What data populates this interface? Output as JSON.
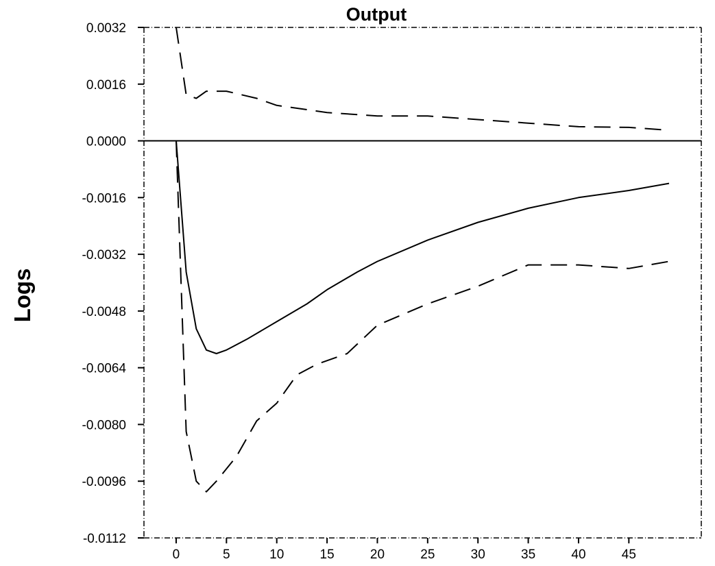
{
  "chart_data": {
    "type": "line",
    "title": "Output",
    "ylabel": "Logs",
    "xlabel": "",
    "xlim": [
      -3.2,
      52.2
    ],
    "ylim": [
      -0.0112,
      0.0032
    ],
    "x_ticks": [
      0,
      5,
      10,
      15,
      20,
      25,
      30,
      35,
      40,
      45
    ],
    "x_tick_labels": [
      "0",
      "5",
      "10",
      "15",
      "20",
      "25",
      "30",
      "35",
      "40",
      "45"
    ],
    "y_ticks": [
      0.0032,
      0.0016,
      0.0,
      -0.0016,
      -0.0032,
      -0.0048,
      -0.0064,
      -0.008,
      -0.0096,
      -0.0112
    ],
    "y_tick_labels": [
      "0.0032",
      "0.0016",
      "0.0000",
      "-0.0016",
      "-0.0032",
      "-0.0048",
      "-0.0064",
      "-0.0080",
      "-0.0096",
      "-0.0112"
    ],
    "zero_line": 0.0,
    "grid": false,
    "series": [
      {
        "role": "response",
        "style": "solid",
        "x": [
          0,
          1,
          2,
          3,
          4,
          5,
          7,
          10,
          13,
          15,
          18,
          20,
          25,
          30,
          35,
          40,
          45,
          49
        ],
        "y": [
          0.0,
          -0.0037,
          -0.0053,
          -0.0059,
          -0.006,
          -0.0059,
          -0.0056,
          -0.0051,
          -0.0046,
          -0.0042,
          -0.0037,
          -0.0034,
          -0.0028,
          -0.0023,
          -0.0019,
          -0.0016,
          -0.0014,
          -0.0012
        ]
      },
      {
        "role": "upper band",
        "style": "dashed",
        "x": [
          0,
          1,
          2,
          3,
          5,
          8,
          10,
          15,
          20,
          25,
          30,
          35,
          40,
          45,
          49
        ],
        "y": [
          0.0032,
          0.0013,
          0.0012,
          0.0014,
          0.0014,
          0.0012,
          0.001,
          0.0008,
          0.0007,
          0.0007,
          0.0006,
          0.0005,
          0.0004,
          0.00038,
          0.0003
        ]
      },
      {
        "role": "lower band",
        "style": "dashed",
        "x": [
          0,
          1,
          2,
          3,
          4,
          6,
          8,
          10,
          12,
          14,
          17,
          20,
          25,
          30,
          35,
          40,
          45,
          49
        ],
        "y": [
          0.0,
          -0.0082,
          -0.0096,
          -0.0099,
          -0.0096,
          -0.0089,
          -0.0079,
          -0.0074,
          -0.0066,
          -0.0063,
          -0.006,
          -0.0052,
          -0.0046,
          -0.0041,
          -0.0035,
          -0.0035,
          -0.0036,
          -0.0034
        ]
      }
    ]
  }
}
